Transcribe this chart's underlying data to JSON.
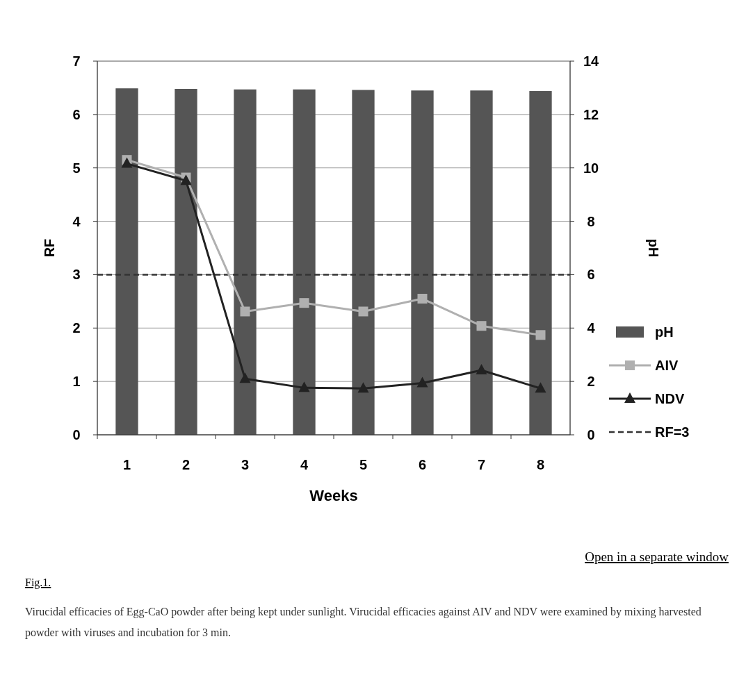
{
  "chart_data": {
    "type": "bar",
    "xlabel": "Weeks",
    "ylabel": "RF",
    "y2label": "pH",
    "categories": [
      "1",
      "2",
      "3",
      "4",
      "5",
      "6",
      "7",
      "8"
    ],
    "series": [
      {
        "name": "pH",
        "axis": "y2",
        "color": "#555555",
        "values": [
          12.98,
          12.96,
          12.94,
          12.94,
          12.92,
          12.9,
          12.9,
          12.88
        ]
      },
      {
        "name": "AIV",
        "type": "line",
        "color": "#b0b0b0",
        "marker": "square",
        "values": [
          5.15,
          4.82,
          2.31,
          2.47,
          2.31,
          2.55,
          2.04,
          1.87
        ]
      },
      {
        "name": "NDV",
        "type": "line",
        "color": "#222222",
        "marker": "triangle",
        "values": [
          5.08,
          4.76,
          1.05,
          0.88,
          0.87,
          0.97,
          1.21,
          0.87
        ]
      }
    ],
    "ylim": [
      0,
      7
    ],
    "yticks": [
      0,
      1,
      2,
      3,
      4,
      5,
      6,
      7
    ],
    "y2lim": [
      0,
      14
    ],
    "y2ticks": [
      0,
      2,
      4,
      6,
      8,
      10,
      12,
      14
    ],
    "ref_lines": [
      {
        "axis": "y",
        "value": 3,
        "label": "RF=3",
        "color": "#333333",
        "line_style": "dashed"
      }
    ],
    "grid": "y",
    "legend": "right",
    "annotations": [
      "Open in a separate window",
      "Fig.1.",
      "Virucidal efficacies of Egg-CaO powder after being kept under sunlight. Virucidal efficacies against AIV and NDV were examined by mixing harvested powder with viruses and incubation for 3 min."
    ]
  }
}
